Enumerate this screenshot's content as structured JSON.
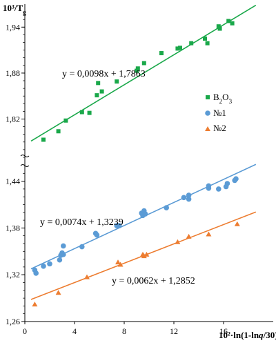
{
  "chart_data": {
    "type": "scatter",
    "ylabel": "10³/Tg",
    "xlabel": "10²·ln(1-lnq/30)",
    "xlim": [
      0,
      20
    ],
    "xticks": [
      "0",
      "4",
      "8",
      "12",
      "16"
    ],
    "xtick_values": [
      0,
      4,
      8,
      12,
      16
    ],
    "legend_placement": "right",
    "panels": [
      {
        "id": "upper",
        "ylim": [
          1.77,
          1.97
        ],
        "yticks": [
          "1,82",
          "1,88",
          "1,94"
        ],
        "ytick_values": [
          1.82,
          1.88,
          1.94
        ],
        "series": [
          {
            "name": "B₂O₃",
            "color": "#1aa84a",
            "marker": "square",
            "x": [
              1.5,
              2.7,
              3.3,
              4.6,
              5.2,
              5.8,
              5.9,
              6.2,
              7.4,
              9.0,
              9.1,
              9.6,
              11.0,
              12.3,
              12.5,
              13.4,
              14.5,
              14.7,
              15.6,
              15.7,
              16.4,
              16.7
            ],
            "y": [
              1.793,
              1.804,
              1.818,
              1.829,
              1.828,
              1.851,
              1.867,
              1.856,
              1.869,
              1.883,
              1.886,
              1.893,
              1.906,
              1.912,
              1.913,
              1.919,
              1.925,
              1.919,
              1.941,
              1.938,
              1.948,
              1.945
            ],
            "trend": {
              "slope": 0.0098,
              "intercept": 1.7863
            },
            "equation": "y = 0,0098x + 1,7863"
          }
        ]
      },
      {
        "id": "lower",
        "ylim": [
          1.26,
          1.46
        ],
        "yticks": [
          "1,26",
          "1,32",
          "1,38",
          "1,44"
        ],
        "ytick_values": [
          1.26,
          1.32,
          1.38,
          1.44
        ],
        "series": [
          {
            "name": "№1",
            "color": "#5b9bd5",
            "marker": "circle",
            "x": [
              0.8,
              0.9,
              1.5,
              2.0,
              2.8,
              2.9,
              3.0,
              3.1,
              3.1,
              4.6,
              5.7,
              5.8,
              7.4,
              7.6,
              9.4,
              9.5,
              9.6,
              9.7,
              11.4,
              12.8,
              13.2,
              13.2,
              14.8,
              14.8,
              15.6,
              16.2,
              16.3,
              16.9,
              17.0
            ],
            "y": [
              1.326,
              1.322,
              1.331,
              1.334,
              1.339,
              1.345,
              1.348,
              1.357,
              1.346,
              1.356,
              1.373,
              1.371,
              1.383,
              1.383,
              1.399,
              1.396,
              1.402,
              1.398,
              1.406,
              1.419,
              1.417,
              1.422,
              1.431,
              1.434,
              1.43,
              1.433,
              1.437,
              1.441,
              1.443
            ],
            "trend": {
              "slope": 0.0074,
              "intercept": 1.3239
            },
            "equation": "y = 0,0074x + 1,3239"
          },
          {
            "name": "№2",
            "color": "#ed7d31",
            "marker": "triangle",
            "x": [
              0.8,
              2.7,
              5.0,
              7.5,
              7.7,
              9.5,
              9.6,
              9.8,
              12.3,
              13.2,
              14.8,
              17.1
            ],
            "y": [
              1.282,
              1.297,
              1.317,
              1.336,
              1.333,
              1.346,
              1.344,
              1.346,
              1.362,
              1.369,
              1.372,
              1.385
            ],
            "trend": {
              "slope": 0.0062,
              "intercept": 1.2852
            },
            "equation": "y = 0,0062x + 1,2852"
          }
        ]
      }
    ]
  }
}
